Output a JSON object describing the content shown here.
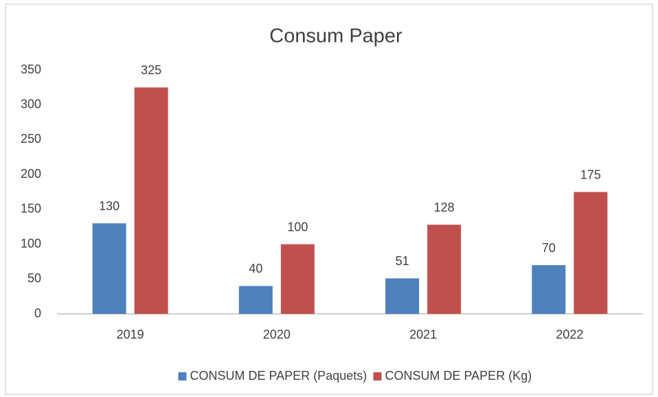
{
  "chart_data": {
    "type": "bar",
    "title": "Consum Paper",
    "categories": [
      "2019",
      "2020",
      "2021",
      "2022"
    ],
    "series": [
      {
        "name": "CONSUM DE PAPER (Paquets)",
        "color": "#4f81bd",
        "values": [
          130,
          40,
          51,
          70
        ]
      },
      {
        "name": "CONSUM DE PAPER (Kg)",
        "color": "#c0504d",
        "values": [
          325,
          100,
          128,
          175
        ]
      }
    ],
    "ylim": [
      0,
      350
    ],
    "yticks": [
      0,
      50,
      100,
      150,
      200,
      250,
      300,
      350
    ],
    "grid": false,
    "legend": "bottom"
  }
}
